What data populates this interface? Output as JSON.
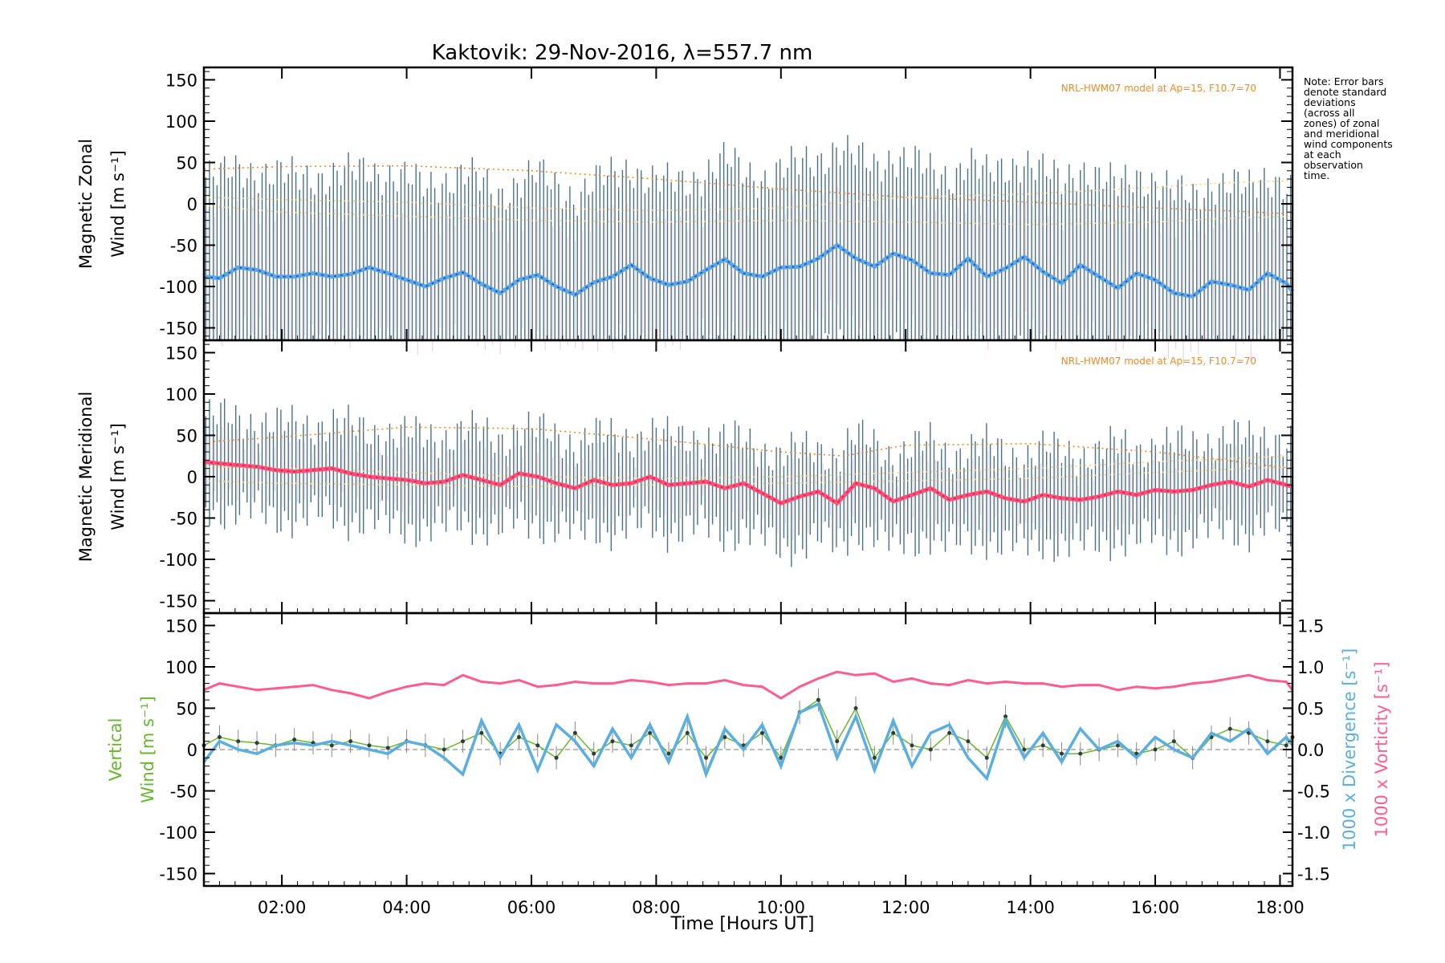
{
  "colors": {
    "axes": "#000000",
    "errbar": "#2b5878",
    "errbar_soft": "#d7a3a3",
    "model": "#f08a24",
    "model_light": "#f6d36a",
    "zonal": "#5aa9e0",
    "zonal_dark": "#1f3fd6",
    "meridional": "#ff4f7d",
    "meridional_dark": "#e01f2a",
    "vertical": "#66b82a",
    "divergence": "#5aaee0",
    "vorticity": "#ff5c8f",
    "outlier": "#b9aed8",
    "zero_line": "#777777"
  },
  "chart_data": {
    "type": "line",
    "title": "Kaktovik: 29-Nov-2016, λ=557.7 nm",
    "xlabel": "Time [Hours UT]",
    "xlim": [
      0.75,
      18.2
    ],
    "xticks": [
      "02:00",
      "04:00",
      "06:00",
      "08:00",
      "10:00",
      "12:00",
      "14:00",
      "16:00",
      "18:00"
    ],
    "xtick_values": [
      2,
      4,
      6,
      8,
      10,
      12,
      14,
      16,
      18
    ],
    "note": "Note: Error bars denote standard deviations (across all zones) of zonal and meridional wind components at each observation time.",
    "panels": [
      {
        "name": "zonal",
        "ylabel_line1": "Magnetic Zonal",
        "ylabel_line2": "Wind [m s⁻¹]",
        "ylim": [
          -165,
          165
        ],
        "yticks": [
          150,
          100,
          50,
          0,
          -50,
          -100,
          -150
        ],
        "model_label": "NRL-HWM07 model at Ap=15, F10.7=70",
        "mean_wind": {
          "x": [
            0.75,
            1.0,
            1.3,
            1.6,
            1.9,
            2.2,
            2.5,
            2.8,
            3.1,
            3.4,
            3.7,
            4.0,
            4.3,
            4.6,
            4.9,
            5.2,
            5.5,
            5.8,
            6.1,
            6.4,
            6.7,
            7.0,
            7.3,
            7.6,
            7.9,
            8.2,
            8.5,
            8.8,
            9.1,
            9.4,
            9.7,
            10.0,
            10.3,
            10.6,
            10.9,
            11.2,
            11.5,
            11.8,
            12.1,
            12.4,
            12.7,
            13.0,
            13.3,
            13.6,
            13.9,
            14.2,
            14.5,
            14.8,
            15.1,
            15.4,
            15.7,
            16.0,
            16.3,
            16.6,
            16.9,
            17.2,
            17.5,
            17.8,
            18.1,
            18.2
          ],
          "y": [
            -88,
            -90,
            -77,
            -80,
            -88,
            -88,
            -84,
            -88,
            -85,
            -77,
            -84,
            -92,
            -100,
            -90,
            -83,
            -97,
            -108,
            -92,
            -86,
            -100,
            -110,
            -95,
            -88,
            -74,
            -90,
            -98,
            -94,
            -80,
            -67,
            -84,
            -88,
            -77,
            -76,
            -66,
            -50,
            -66,
            -76,
            -60,
            -68,
            -84,
            -86,
            -66,
            -88,
            -78,
            -64,
            -82,
            -96,
            -74,
            -88,
            -102,
            -84,
            -92,
            -108,
            -112,
            -94,
            -98,
            -104,
            -84,
            -96,
            -106
          ]
        },
        "model_curves": [
          {
            "x": [
              0.75,
              2,
              4,
              6,
              8,
              10,
              12,
              14,
              16,
              17,
              18.2
            ],
            "y": [
              42,
              45,
              46,
              40,
              30,
              18,
              8,
              2,
              -5,
              -8,
              -12
            ]
          },
          {
            "x": [
              0.75,
              2,
              4,
              6,
              8,
              10,
              12,
              14,
              16,
              17,
              18.2
            ],
            "y": [
              -2,
              -10,
              -15,
              -20,
              -22,
              -20,
              -22,
              -25,
              -22,
              -18,
              -15
            ]
          },
          {
            "x": [
              0.75,
              2,
              4,
              6,
              8,
              10,
              12,
              14,
              16,
              17,
              18.2
            ],
            "y": [
              8,
              5,
              2,
              -5,
              -8,
              -5,
              8,
              12,
              20,
              25,
              28
            ]
          }
        ]
      },
      {
        "name": "meridional",
        "ylabel_line1": "Magnetic Meridional",
        "ylabel_line2": "Wind [m s⁻¹]",
        "ylim": [
          -165,
          165
        ],
        "yticks": [
          150,
          100,
          50,
          0,
          -50,
          -100,
          -150
        ],
        "model_label": "NRL-HWM07 model at Ap=15, F10.7=70",
        "mean_wind": {
          "x": [
            0.75,
            1.0,
            1.3,
            1.6,
            1.9,
            2.2,
            2.5,
            2.8,
            3.1,
            3.4,
            3.7,
            4.0,
            4.3,
            4.6,
            4.9,
            5.2,
            5.5,
            5.8,
            6.1,
            6.4,
            6.7,
            7.0,
            7.3,
            7.6,
            7.9,
            8.2,
            8.5,
            8.8,
            9.1,
            9.4,
            9.7,
            10.0,
            10.3,
            10.6,
            10.9,
            11.2,
            11.5,
            11.8,
            12.1,
            12.4,
            12.7,
            13.0,
            13.3,
            13.6,
            13.9,
            14.2,
            14.5,
            14.8,
            15.1,
            15.4,
            15.7,
            16.0,
            16.3,
            16.6,
            16.9,
            17.2,
            17.5,
            17.8,
            18.1,
            18.2
          ],
          "y": [
            18,
            16,
            14,
            12,
            8,
            6,
            8,
            10,
            4,
            0,
            -2,
            -4,
            -8,
            -6,
            2,
            -4,
            -10,
            4,
            0,
            -8,
            -14,
            -4,
            -10,
            -8,
            0,
            -10,
            -8,
            -6,
            -14,
            -8,
            -20,
            -32,
            -24,
            -18,
            -32,
            -8,
            -14,
            -30,
            -22,
            -14,
            -28,
            -22,
            -18,
            -26,
            -30,
            -22,
            -26,
            -28,
            -24,
            -18,
            -22,
            -16,
            -18,
            -16,
            -10,
            -6,
            -12,
            -4,
            -10,
            -12
          ]
        },
        "model_curves": [
          {
            "x": [
              0.75,
              2,
              4,
              6,
              8,
              10,
              11,
              12,
              14,
              16,
              18.2
            ],
            "y": [
              42,
              48,
              60,
              58,
              45,
              30,
              25,
              38,
              40,
              30,
              10
            ]
          },
          {
            "x": [
              0.75,
              2,
              4,
              6,
              8,
              10,
              12,
              14,
              16,
              18.2
            ],
            "y": [
              -5,
              -8,
              -10,
              -12,
              -10,
              -8,
              -5,
              -2,
              5,
              12
            ]
          },
          {
            "x": [
              0.75,
              2,
              4,
              6,
              8,
              10,
              12,
              14,
              16,
              18.2
            ],
            "y": [
              12,
              10,
              5,
              0,
              -2,
              0,
              5,
              10,
              18,
              25
            ]
          }
        ]
      },
      {
        "name": "vertical",
        "ylabel_line1": "Vertical",
        "ylabel_line2": "Wind [m s⁻¹]",
        "ylim": [
          -165,
          165
        ],
        "yticks": [
          150,
          100,
          50,
          0,
          -50,
          -100,
          -150
        ],
        "ylim_right": [
          -1.65,
          1.65
        ],
        "yticks_right": [
          "1.5",
          "1.0",
          "0.5",
          "0.0",
          "-0.5",
          "-1.0",
          "-1.5"
        ],
        "ylabel_right_divergence": "1000 x Divergence [s⁻¹]",
        "ylabel_right_vorticity": "1000 x Vorticity [s⁻¹]",
        "vertical_wind": {
          "x": [
            0.75,
            1.0,
            1.3,
            1.6,
            1.9,
            2.2,
            2.5,
            2.8,
            3.1,
            3.4,
            3.7,
            4.0,
            4.3,
            4.6,
            4.9,
            5.2,
            5.5,
            5.8,
            6.1,
            6.4,
            6.7,
            7.0,
            7.3,
            7.6,
            7.9,
            8.2,
            8.5,
            8.8,
            9.1,
            9.4,
            9.7,
            10.0,
            10.3,
            10.6,
            10.9,
            11.2,
            11.5,
            11.8,
            12.1,
            12.4,
            12.7,
            13.0,
            13.3,
            13.6,
            13.9,
            14.2,
            14.5,
            14.8,
            15.1,
            15.4,
            15.7,
            16.0,
            16.3,
            16.6,
            16.9,
            17.2,
            17.5,
            17.8,
            18.1,
            18.2
          ],
          "y": [
            5,
            15,
            10,
            8,
            5,
            12,
            8,
            5,
            10,
            5,
            2,
            10,
            5,
            0,
            10,
            20,
            -5,
            15,
            5,
            -10,
            20,
            -5,
            10,
            5,
            20,
            -5,
            20,
            -10,
            15,
            5,
            20,
            -10,
            45,
            60,
            10,
            50,
            -10,
            20,
            5,
            0,
            20,
            10,
            -10,
            40,
            0,
            5,
            -5,
            -5,
            0,
            5,
            -5,
            0,
            10,
            -10,
            15,
            25,
            20,
            10,
            5,
            15
          ]
        },
        "divergence": {
          "x": [
            0.75,
            1.0,
            1.3,
            1.6,
            1.9,
            2.2,
            2.5,
            2.8,
            3.1,
            3.4,
            3.7,
            4.0,
            4.3,
            4.6,
            4.9,
            5.2,
            5.5,
            5.8,
            6.1,
            6.4,
            6.7,
            7.0,
            7.3,
            7.6,
            7.9,
            8.2,
            8.5,
            8.8,
            9.1,
            9.4,
            9.7,
            10.0,
            10.3,
            10.6,
            10.9,
            11.2,
            11.5,
            11.8,
            12.1,
            12.4,
            12.7,
            13.0,
            13.3,
            13.6,
            13.9,
            14.2,
            14.5,
            14.8,
            15.1,
            15.4,
            15.7,
            16.0,
            16.3,
            16.6,
            16.9,
            17.2,
            17.5,
            17.8,
            18.1,
            18.2
          ],
          "y": [
            -0.15,
            0.1,
            0.0,
            -0.05,
            0.05,
            0.08,
            0.05,
            0.1,
            0.05,
            0.0,
            -0.05,
            0.1,
            0.05,
            -0.1,
            -0.3,
            0.35,
            -0.1,
            0.3,
            -0.25,
            0.3,
            0.1,
            -0.2,
            0.25,
            -0.1,
            0.3,
            -0.15,
            0.4,
            -0.3,
            0.25,
            0.0,
            0.3,
            -0.2,
            0.45,
            0.55,
            -0.1,
            0.4,
            -0.25,
            0.35,
            -0.2,
            0.2,
            0.3,
            -0.1,
            -0.35,
            0.35,
            -0.1,
            0.2,
            -0.15,
            0.25,
            0.0,
            0.1,
            -0.1,
            0.15,
            0.0,
            -0.1,
            0.2,
            0.1,
            0.25,
            -0.05,
            0.15,
            0.05
          ]
        },
        "vorticity": {
          "x": [
            0.75,
            1.0,
            1.3,
            1.6,
            1.9,
            2.2,
            2.5,
            2.8,
            3.1,
            3.4,
            3.7,
            4.0,
            4.3,
            4.6,
            4.9,
            5.2,
            5.5,
            5.8,
            6.1,
            6.4,
            6.7,
            7.0,
            7.3,
            7.6,
            7.9,
            8.2,
            8.5,
            8.8,
            9.1,
            9.4,
            9.7,
            10.0,
            10.3,
            10.6,
            10.9,
            11.2,
            11.5,
            11.8,
            12.1,
            12.4,
            12.7,
            13.0,
            13.3,
            13.6,
            13.9,
            14.2,
            14.5,
            14.8,
            15.1,
            15.4,
            15.7,
            16.0,
            16.3,
            16.6,
            16.9,
            17.2,
            17.5,
            17.8,
            18.1,
            18.2
          ],
          "y": [
            0.72,
            0.8,
            0.76,
            0.72,
            0.74,
            0.76,
            0.78,
            0.72,
            0.68,
            0.62,
            0.7,
            0.76,
            0.8,
            0.78,
            0.9,
            0.82,
            0.8,
            0.84,
            0.76,
            0.78,
            0.82,
            0.8,
            0.8,
            0.84,
            0.82,
            0.78,
            0.8,
            0.8,
            0.84,
            0.78,
            0.76,
            0.62,
            0.76,
            0.86,
            0.94,
            0.9,
            0.92,
            0.82,
            0.86,
            0.8,
            0.78,
            0.84,
            0.8,
            0.82,
            0.8,
            0.8,
            0.76,
            0.78,
            0.78,
            0.72,
            0.76,
            0.74,
            0.76,
            0.8,
            0.82,
            0.86,
            0.9,
            0.84,
            0.82,
            0.72
          ]
        }
      }
    ]
  }
}
